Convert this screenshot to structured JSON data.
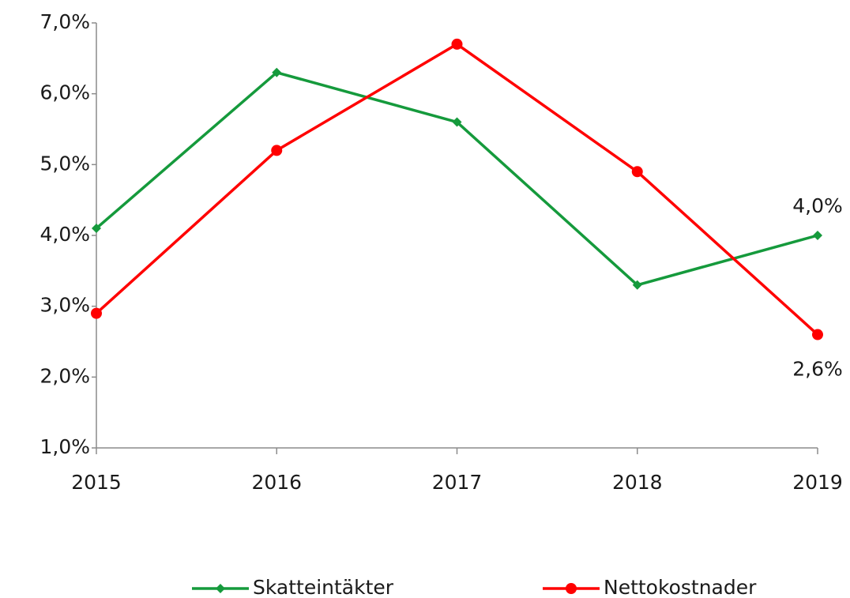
{
  "chart_data": {
    "type": "line",
    "categories": [
      "2015",
      "2016",
      "2017",
      "2018",
      "2019"
    ],
    "series": [
      {
        "name": "Skatteintäkter",
        "color": "#159a3c",
        "marker": "diamond",
        "values": [
          4.1,
          6.3,
          5.6,
          3.3,
          4.0
        ],
        "value_labels": [
          null,
          null,
          null,
          null,
          "4,0%"
        ]
      },
      {
        "name": "Nettokostnader",
        "color": "#ff0000",
        "marker": "circle",
        "values": [
          2.9,
          5.2,
          6.7,
          4.9,
          2.6
        ],
        "value_labels": [
          null,
          null,
          null,
          null,
          "2,6%"
        ]
      }
    ],
    "ylim": [
      1,
      7
    ],
    "yticks": [
      {
        "value": 1,
        "label": "1,0%"
      },
      {
        "value": 2,
        "label": "2,0%"
      },
      {
        "value": 3,
        "label": "3,0%"
      },
      {
        "value": 4,
        "label": "4,0%"
      },
      {
        "value": 5,
        "label": "5,0%"
      },
      {
        "value": 6,
        "label": "6,0%"
      },
      {
        "value": 7,
        "label": "7,0%"
      }
    ],
    "grid": false,
    "legend": "bottom"
  }
}
